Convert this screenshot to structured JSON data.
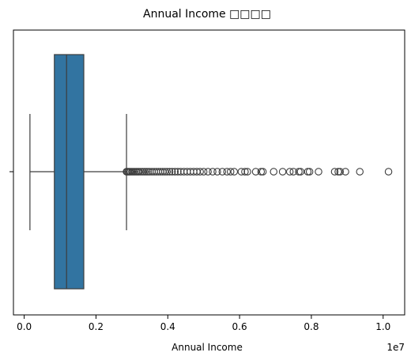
{
  "chart_data": {
    "type": "box",
    "orientation": "horizontal",
    "title": "Annual Income 箱形图",
    "title_render": "Annual Income □□□□",
    "xlabel": "Annual Income",
    "ylabel": "",
    "x_scale_label": "1e7",
    "xlim": [
      -300000,
      10600000
    ],
    "x_ticks": [
      0,
      2000000,
      4000000,
      6000000,
      8000000,
      10000000
    ],
    "x_tick_labels": [
      "0.0",
      "0.2",
      "0.4",
      "0.6",
      "0.8",
      "1.0"
    ],
    "grid": false,
    "colors": {
      "box": "#3274a1",
      "line": "#3d3d3d",
      "axis": "#000000"
    },
    "box": {
      "whisker_low": 160000,
      "q1": 840000,
      "median": 1180000,
      "q3": 1660000,
      "whisker_high": 2850000
    },
    "outliers": [
      2850000,
      2870000,
      2900000,
      2930000,
      2960000,
      3000000,
      3040000,
      3080000,
      3120000,
      3160000,
      3200000,
      3250000,
      3300000,
      3350000,
      3400000,
      3450000,
      3500000,
      3560000,
      3620000,
      3680000,
      3740000,
      3800000,
      3860000,
      3920000,
      3980000,
      4050000,
      4120000,
      4200000,
      4280000,
      4360000,
      4450000,
      4540000,
      4630000,
      4720000,
      4810000,
      4900000,
      5000000,
      5120000,
      5250000,
      5380000,
      5520000,
      5650000,
      5750000,
      5850000,
      6050000,
      6150000,
      6220000,
      6450000,
      6600000,
      6650000,
      6950000,
      7200000,
      7400000,
      7500000,
      7650000,
      7700000,
      7900000,
      7950000,
      8200000,
      8650000,
      8750000,
      8800000,
      8950000,
      9350000,
      10150000
    ]
  }
}
